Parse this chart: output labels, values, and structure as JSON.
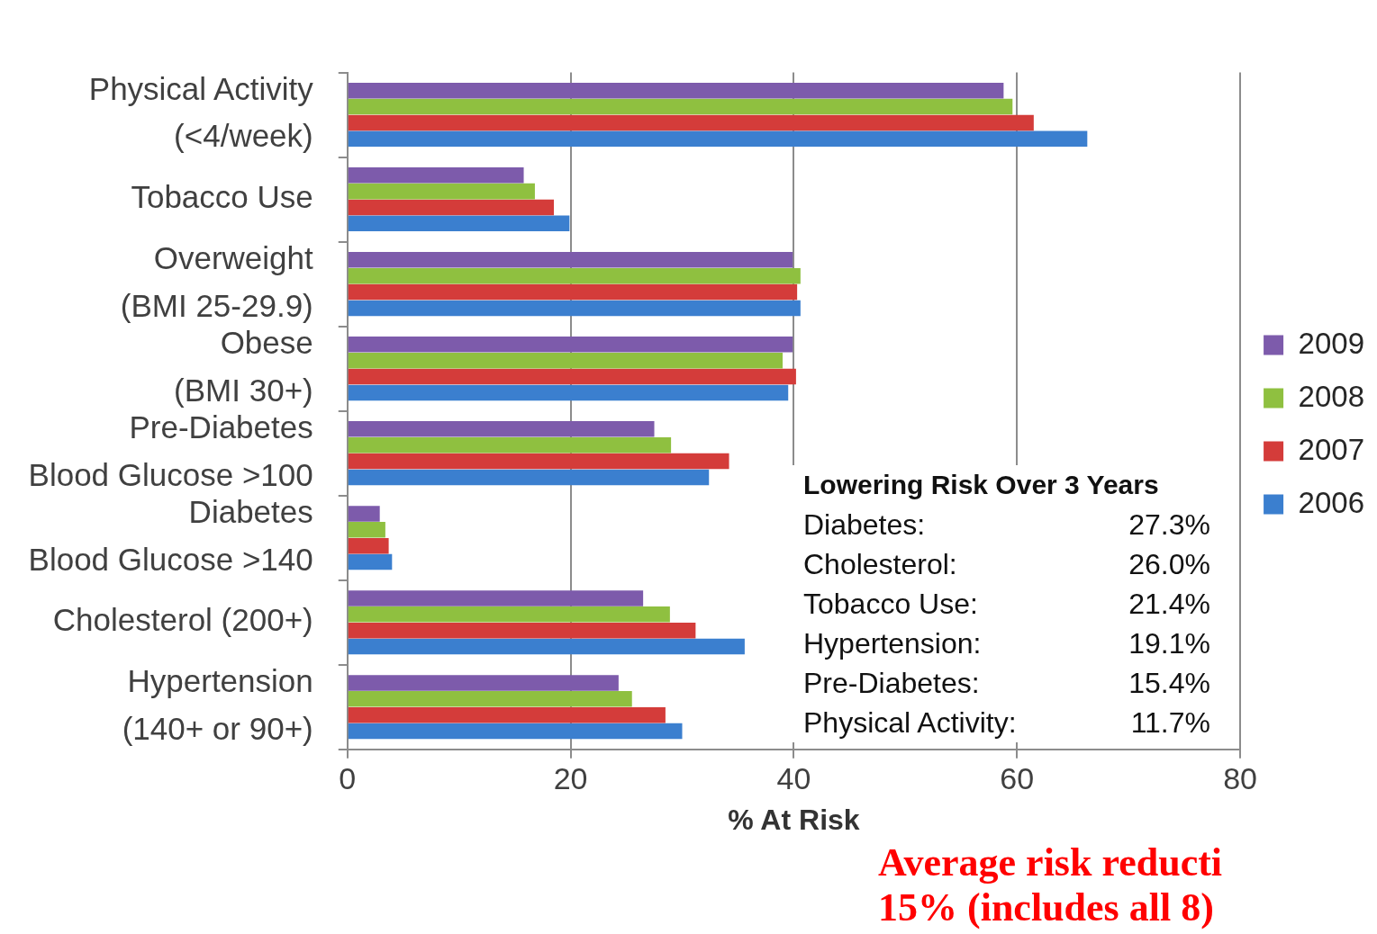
{
  "chart_data": {
    "type": "bar",
    "orientation": "horizontal",
    "categories": [
      "Physical Activity\n(<4/week)",
      "Tobacco Use",
      "Overweight\n(BMI 25-29.9)",
      "Obese\n(BMI 30+)",
      "Pre-Diabetes\nBlood Glucose >100",
      "Diabetes\nBlood Glucose >140",
      "Cholesterol (200+)",
      "Hypertension\n(140+ or 90+)"
    ],
    "series": [
      {
        "name": "2009",
        "color": "#7d5bab",
        "values": [
          58.8,
          15.8,
          39.9,
          39.9,
          27.5,
          2.9,
          26.5,
          24.3
        ]
      },
      {
        "name": "2008",
        "color": "#8fc040",
        "values": [
          59.6,
          16.8,
          40.6,
          39.0,
          29.0,
          3.4,
          28.9,
          25.5
        ]
      },
      {
        "name": "2007",
        "color": "#d43c3a",
        "values": [
          61.5,
          18.5,
          40.3,
          40.2,
          34.2,
          3.7,
          31.2,
          28.5
        ]
      },
      {
        "name": "2006",
        "color": "#3b7fcf",
        "values": [
          66.3,
          19.9,
          40.6,
          39.5,
          32.4,
          4.0,
          35.6,
          30.0
        ]
      }
    ],
    "xlim": [
      0,
      80
    ],
    "xticks": [
      0,
      20,
      40,
      60,
      80
    ],
    "xlabel": "% At Risk",
    "grid": "x",
    "legend": "right",
    "annotations": [
      "Lowering Risk Over 3 Years\nDiabetes:\t27.3%\nCholesterol:\t26.0%\nTobacco Use:\t21.4%\nHypertension:\t19.1%\nPre-Diabetes:\t15.4%\nPhysical Activity:\t11.7%",
      "Average risk reducti\n15% (includes all 8)"
    ]
  }
}
